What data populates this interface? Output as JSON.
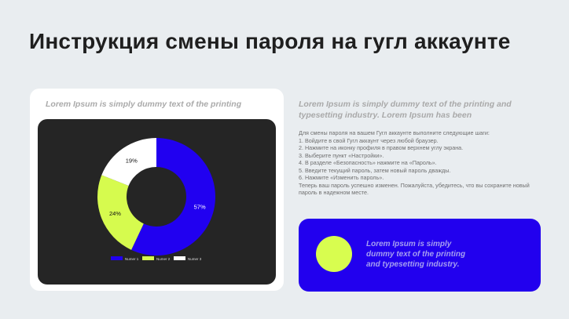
{
  "title": "Инструкция смены пароля на гугл аккаунте",
  "left_card": {
    "caption": "Lorem Ipsum is simply dummy text of the printing"
  },
  "chart_data": {
    "type": "pie",
    "donut": true,
    "categories": [
      "Numer 1",
      "Numer 2",
      "Numer 3"
    ],
    "values": [
      57,
      24,
      19
    ],
    "labels": [
      "57%",
      "24%",
      "19%"
    ],
    "colors": [
      "#2100f0",
      "#d6fb4e",
      "#ffffff"
    ],
    "legend_position": "bottom"
  },
  "right": {
    "heading": "Lorem Ipsum is simply dummy text of the printing and typesetting industry. Lorem Ipsum has been",
    "instructions": [
      "Для смены пароля на вашем Гугл аккаунте выполните следующие шаги:",
      "1. Войдите в свой Гугл аккаунт через любой браузер.",
      "2. Нажмите на иконку профиля в правом верхнем углу экрана.",
      "3. Выберите пункт «Настройки».",
      "4. В разделе «Безопасность» нажмите на «Пароль».",
      "5. Введите текущий пароль, затем новый пароль дважды.",
      "6. Нажмите «Изменить пароль».",
      "Теперь ваш пароль успешно изменен. Пожалуйста, убедитесь, что вы сохраните новый пароль в надежном месте."
    ]
  },
  "blue_card": {
    "text": "Lorem Ipsum is simply dummy text of the printing and typesetting industry."
  }
}
